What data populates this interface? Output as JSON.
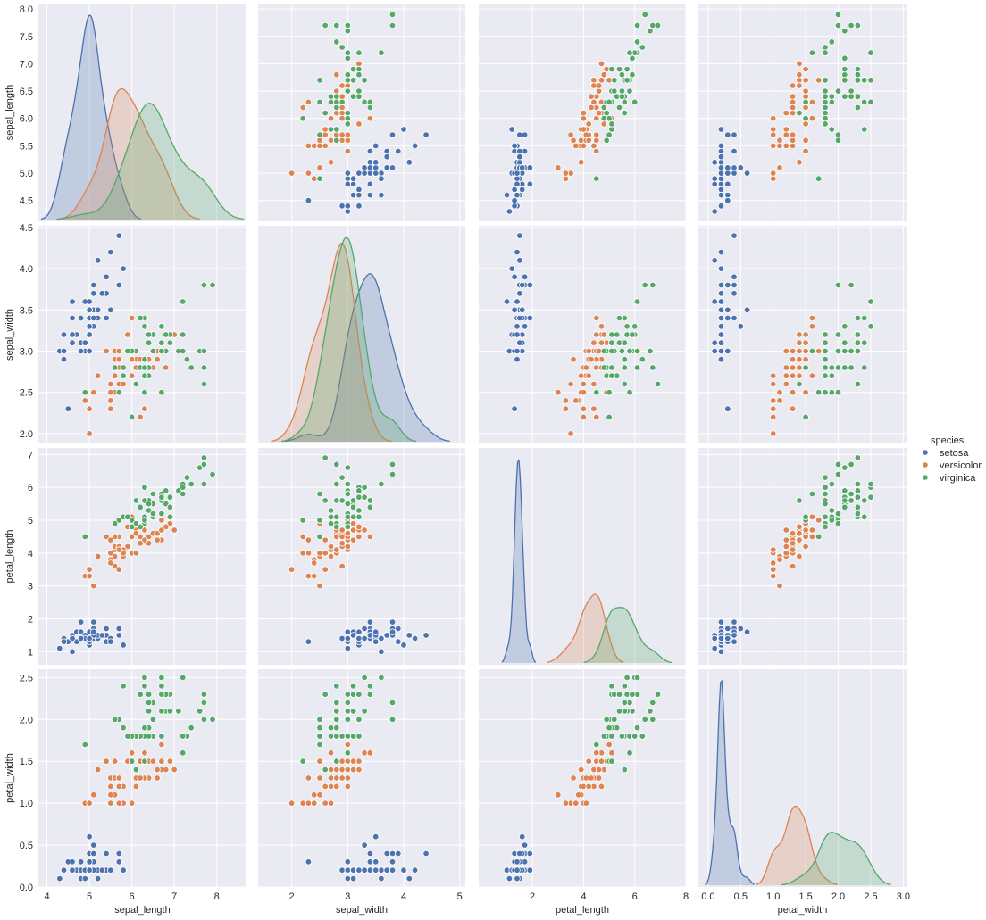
{
  "chart_data": {
    "type": "scatter",
    "kind": "pairplot",
    "variables": [
      "sepal_length",
      "sepal_width",
      "petal_length",
      "petal_width"
    ],
    "hue": "species",
    "legend": {
      "title": "species",
      "placement": "right-center",
      "entries": [
        "setosa",
        "versicolor",
        "virginica"
      ]
    },
    "colors": {
      "setosa": "#4c72b0",
      "versicolor": "#dd8452",
      "virginica": "#55a868",
      "panel_background": "#eaeaf2",
      "grid": "#ffffff"
    },
    "grid": true,
    "diagonal": "kde",
    "axes": {
      "sepal_length": {
        "label": "sepal_length",
        "lim": [
          3.8,
          8.7
        ],
        "ticks": [
          "4",
          "5",
          "6",
          "7",
          "8"
        ],
        "ylim": [
          4.12,
          8.1
        ],
        "yticks": [
          "4.5",
          "5.0",
          "5.5",
          "6.0",
          "6.5",
          "7.0",
          "7.5",
          "8.0"
        ]
      },
      "sepal_width": {
        "label": "sepal_width",
        "lim": [
          1.4,
          5.1
        ],
        "ticks": [
          "2",
          "3",
          "4",
          "5"
        ],
        "ylim": [
          1.88,
          4.52
        ],
        "yticks": [
          "2.0",
          "2.5",
          "3.0",
          "3.5",
          "4.0",
          "4.5"
        ]
      },
      "petal_length": {
        "label": "petal_length",
        "lim": [
          -0.1,
          8.0
        ],
        "ticks": [
          "2",
          "4",
          "6",
          "8"
        ],
        "ylim": [
          0.6,
          7.2
        ],
        "yticks": [
          "1",
          "2",
          "3",
          "4",
          "5",
          "6",
          "7"
        ]
      },
      "petal_width": {
        "label": "petal_width",
        "lim": [
          -0.15,
          3.05
        ],
        "ticks": [
          "0.0",
          "0.5",
          "1.0",
          "1.5",
          "2.0",
          "2.5",
          "3.0"
        ],
        "ylim": [
          0.0,
          2.6
        ],
        "yticks": [
          "0.0",
          "0.5",
          "1.0",
          "1.5",
          "2.0",
          "2.5"
        ]
      }
    },
    "series": [
      {
        "name": "setosa",
        "sepal_length": [
          5.1,
          4.9,
          4.7,
          4.6,
          5.0,
          5.4,
          4.6,
          5.0,
          4.4,
          4.9,
          5.4,
          4.8,
          4.8,
          4.3,
          5.8,
          5.7,
          5.4,
          5.1,
          5.7,
          5.1,
          5.4,
          5.1,
          4.6,
          5.1,
          4.8,
          5.0,
          5.0,
          5.2,
          5.2,
          4.7,
          4.8,
          5.4,
          5.2,
          5.5,
          4.9,
          5.0,
          5.5,
          4.9,
          4.4,
          5.1,
          5.0,
          4.5,
          4.4,
          5.0,
          5.1,
          4.8,
          5.1,
          4.6,
          5.3,
          5.0
        ],
        "sepal_width": [
          3.5,
          3.0,
          3.2,
          3.1,
          3.6,
          3.9,
          3.4,
          3.4,
          2.9,
          3.1,
          3.7,
          3.4,
          3.0,
          3.0,
          4.0,
          4.4,
          3.9,
          3.5,
          3.8,
          3.8,
          3.4,
          3.7,
          3.6,
          3.3,
          3.4,
          3.0,
          3.4,
          3.5,
          3.4,
          3.2,
          3.1,
          3.4,
          4.1,
          4.2,
          3.1,
          3.2,
          3.5,
          3.6,
          3.0,
          3.4,
          3.5,
          2.3,
          3.2,
          3.5,
          3.8,
          3.0,
          3.8,
          3.2,
          3.7,
          3.3
        ],
        "petal_length": [
          1.4,
          1.4,
          1.3,
          1.5,
          1.4,
          1.7,
          1.4,
          1.5,
          1.4,
          1.5,
          1.5,
          1.6,
          1.4,
          1.1,
          1.2,
          1.5,
          1.3,
          1.4,
          1.7,
          1.5,
          1.7,
          1.5,
          1.0,
          1.7,
          1.9,
          1.6,
          1.6,
          1.5,
          1.4,
          1.6,
          1.6,
          1.5,
          1.5,
          1.4,
          1.5,
          1.2,
          1.3,
          1.4,
          1.3,
          1.5,
          1.3,
          1.3,
          1.3,
          1.6,
          1.9,
          1.4,
          1.6,
          1.4,
          1.5,
          1.4
        ],
        "petal_width": [
          0.2,
          0.2,
          0.2,
          0.2,
          0.2,
          0.4,
          0.3,
          0.2,
          0.2,
          0.1,
          0.2,
          0.2,
          0.1,
          0.1,
          0.2,
          0.4,
          0.4,
          0.3,
          0.3,
          0.3,
          0.2,
          0.4,
          0.2,
          0.5,
          0.2,
          0.2,
          0.4,
          0.2,
          0.2,
          0.2,
          0.2,
          0.4,
          0.1,
          0.2,
          0.2,
          0.2,
          0.2,
          0.1,
          0.2,
          0.2,
          0.3,
          0.3,
          0.2,
          0.6,
          0.4,
          0.3,
          0.2,
          0.2,
          0.2,
          0.2
        ]
      },
      {
        "name": "versicolor",
        "sepal_length": [
          7.0,
          6.4,
          6.9,
          5.5,
          6.5,
          5.7,
          6.3,
          4.9,
          6.6,
          5.2,
          5.0,
          5.9,
          6.0,
          6.1,
          5.6,
          6.7,
          5.6,
          5.8,
          6.2,
          5.6,
          5.9,
          6.1,
          6.3,
          6.1,
          6.4,
          6.6,
          6.8,
          6.7,
          6.0,
          5.7,
          5.5,
          5.5,
          5.8,
          6.0,
          5.4,
          6.0,
          6.7,
          6.3,
          5.6,
          5.5,
          5.5,
          6.1,
          5.8,
          5.0,
          5.6,
          5.7,
          5.7,
          6.2,
          5.1,
          5.7
        ],
        "sepal_width": [
          3.2,
          3.2,
          3.1,
          2.3,
          2.8,
          2.8,
          3.3,
          2.4,
          2.9,
          2.7,
          2.0,
          3.0,
          2.2,
          2.9,
          2.9,
          3.1,
          3.0,
          2.7,
          2.2,
          2.5,
          3.2,
          2.8,
          2.5,
          2.8,
          2.9,
          3.0,
          2.8,
          3.0,
          2.9,
          2.6,
          2.4,
          2.4,
          2.7,
          2.7,
          3.0,
          3.4,
          3.1,
          2.3,
          3.0,
          2.5,
          2.6,
          3.0,
          2.6,
          2.3,
          2.7,
          3.0,
          2.9,
          2.9,
          2.5,
          2.8
        ],
        "petal_length": [
          4.7,
          4.5,
          4.9,
          4.0,
          4.6,
          4.5,
          4.7,
          3.3,
          4.6,
          3.9,
          3.5,
          4.2,
          4.0,
          4.7,
          3.6,
          4.4,
          4.5,
          4.1,
          4.5,
          3.9,
          4.8,
          4.0,
          4.9,
          4.7,
          4.3,
          4.4,
          4.8,
          5.0,
          4.5,
          3.5,
          3.8,
          3.7,
          3.9,
          5.1,
          4.5,
          4.5,
          4.7,
          4.4,
          4.1,
          4.0,
          4.4,
          4.6,
          4.0,
          3.3,
          4.2,
          4.2,
          4.2,
          4.3,
          3.0,
          4.1
        ],
        "petal_width": [
          1.4,
          1.5,
          1.5,
          1.3,
          1.5,
          1.3,
          1.6,
          1.0,
          1.3,
          1.4,
          1.0,
          1.5,
          1.0,
          1.4,
          1.3,
          1.4,
          1.5,
          1.0,
          1.5,
          1.1,
          1.8,
          1.3,
          1.5,
          1.2,
          1.3,
          1.4,
          1.4,
          1.7,
          1.5,
          1.0,
          1.1,
          1.0,
          1.2,
          1.6,
          1.5,
          1.6,
          1.5,
          1.3,
          1.3,
          1.3,
          1.2,
          1.4,
          1.2,
          1.0,
          1.3,
          1.2,
          1.3,
          1.3,
          1.1,
          1.3
        ]
      },
      {
        "name": "virginica",
        "sepal_length": [
          6.3,
          5.8,
          7.1,
          6.3,
          6.5,
          7.6,
          4.9,
          7.3,
          6.7,
          7.2,
          6.5,
          6.4,
          6.8,
          5.7,
          5.8,
          6.4,
          6.5,
          7.7,
          7.7,
          6.0,
          6.9,
          5.6,
          7.7,
          6.3,
          6.7,
          7.2,
          6.2,
          6.1,
          6.4,
          7.2,
          7.4,
          7.9,
          6.4,
          6.3,
          6.1,
          7.7,
          6.3,
          6.4,
          6.0,
          6.9,
          6.7,
          6.9,
          5.8,
          6.8,
          6.7,
          6.7,
          6.3,
          6.5,
          6.2,
          5.9
        ],
        "sepal_width": [
          3.3,
          2.7,
          3.0,
          2.9,
          3.0,
          3.0,
          2.5,
          2.9,
          2.5,
          3.6,
          3.2,
          2.7,
          3.0,
          2.5,
          2.8,
          3.2,
          3.0,
          3.8,
          2.6,
          2.2,
          3.2,
          2.8,
          2.8,
          2.7,
          3.3,
          3.2,
          2.8,
          3.0,
          2.8,
          3.0,
          2.8,
          3.8,
          2.8,
          2.8,
          2.6,
          3.0,
          3.4,
          3.1,
          3.0,
          3.1,
          3.1,
          3.1,
          2.7,
          3.2,
          3.3,
          3.0,
          2.5,
          3.0,
          3.4,
          3.0
        ],
        "petal_length": [
          6.0,
          5.1,
          5.9,
          5.6,
          5.8,
          6.6,
          4.5,
          6.3,
          5.8,
          6.1,
          5.1,
          5.3,
          5.5,
          5.0,
          5.1,
          5.3,
          5.5,
          6.7,
          6.9,
          5.0,
          5.7,
          4.9,
          6.7,
          4.9,
          5.7,
          6.0,
          4.8,
          4.9,
          5.6,
          5.8,
          6.1,
          6.4,
          5.6,
          5.1,
          5.6,
          6.1,
          5.6,
          5.5,
          4.8,
          5.4,
          5.6,
          5.1,
          5.1,
          5.9,
          5.7,
          5.2,
          5.0,
          5.2,
          5.4,
          5.1
        ],
        "petal_width": [
          2.5,
          1.9,
          2.1,
          1.8,
          2.2,
          2.1,
          1.7,
          1.8,
          1.8,
          2.5,
          2.0,
          1.9,
          2.1,
          2.0,
          2.4,
          2.3,
          1.8,
          2.2,
          2.3,
          1.5,
          2.3,
          2.0,
          2.0,
          1.8,
          2.1,
          1.8,
          1.8,
          1.8,
          2.1,
          1.6,
          1.9,
          2.0,
          2.2,
          1.5,
          1.4,
          2.3,
          2.4,
          1.8,
          1.8,
          2.1,
          2.4,
          2.3,
          1.9,
          2.3,
          2.5,
          2.3,
          1.9,
          2.0,
          2.3,
          1.8
        ]
      }
    ]
  }
}
